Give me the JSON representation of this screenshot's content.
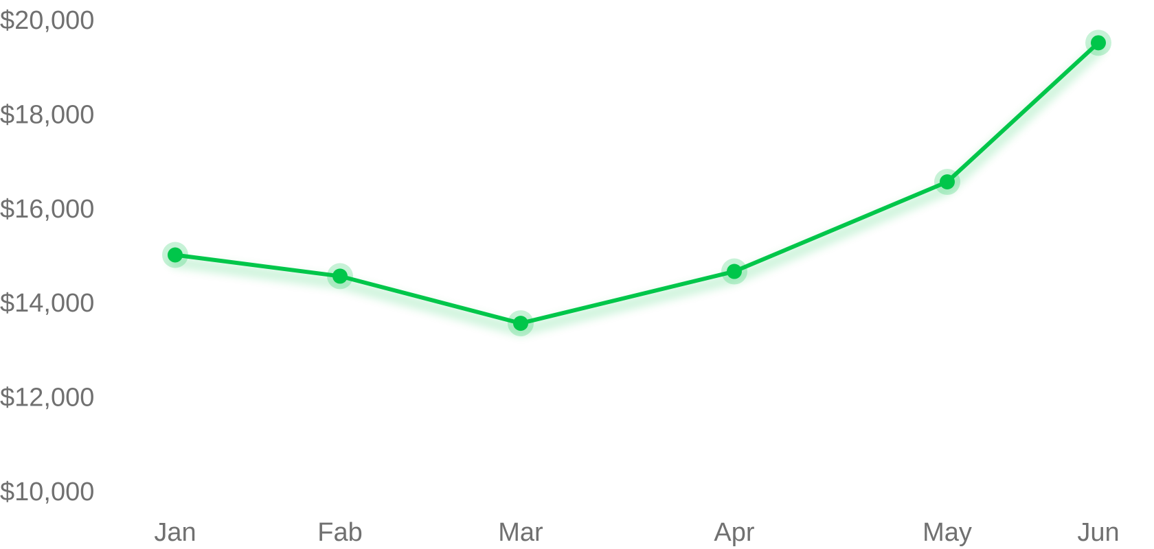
{
  "chart_data": {
    "type": "line",
    "title": "",
    "xlabel": "",
    "ylabel": "",
    "categories": [
      "Jan",
      "Fab",
      "Mar",
      "Apr",
      "May",
      "Jun"
    ],
    "y_ticks": [
      "$20,000",
      "$18,000",
      "$16,000",
      "$14,000",
      "$12,000",
      "$10,000"
    ],
    "ylim": [
      10000,
      20000
    ],
    "grid": false,
    "legend": "none",
    "series": [
      {
        "x": [
          "Jan",
          "Fab",
          "Mar",
          "Apr",
          "May",
          "Jun"
        ],
        "values": [
          15000,
          14550,
          13550,
          14650,
          16550,
          19500
        ],
        "color": "#00c64a"
      }
    ]
  }
}
